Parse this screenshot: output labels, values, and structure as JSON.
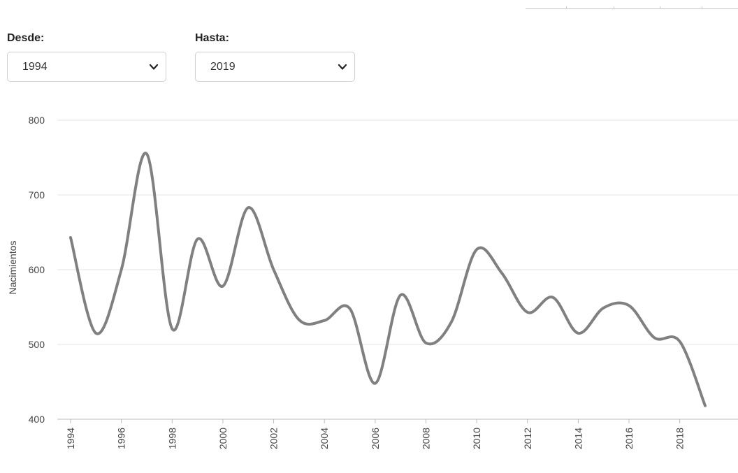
{
  "filters": {
    "from": {
      "label": "Desde:",
      "value": "1994"
    },
    "to": {
      "label": "Hasta:",
      "value": "2019"
    }
  },
  "chart_data": {
    "type": "line",
    "ylabel": "Nacimientos",
    "xlabel": "",
    "title": "",
    "ylim": [
      400,
      800
    ],
    "yticks": [
      400,
      500,
      600,
      700,
      800
    ],
    "xticks": [
      1994,
      1996,
      1998,
      2000,
      2002,
      2004,
      2006,
      2008,
      2010,
      2012,
      2014,
      2016,
      2018
    ],
    "grid": true,
    "line_color": "#808080",
    "x": [
      1994,
      1995,
      1996,
      1997,
      1998,
      1999,
      2000,
      2001,
      2002,
      2003,
      2004,
      2005,
      2006,
      2007,
      2008,
      2009,
      2010,
      2011,
      2012,
      2013,
      2014,
      2015,
      2016,
      2017,
      2018,
      2019
    ],
    "series": [
      {
        "values": [
          643,
          515,
          600,
          755,
          521,
          641,
          578,
          683,
          600,
          533,
          532,
          548,
          448,
          566,
          502,
          530,
          627,
          595,
          543,
          563,
          515,
          549,
          552,
          509,
          504,
          418
        ]
      }
    ]
  }
}
